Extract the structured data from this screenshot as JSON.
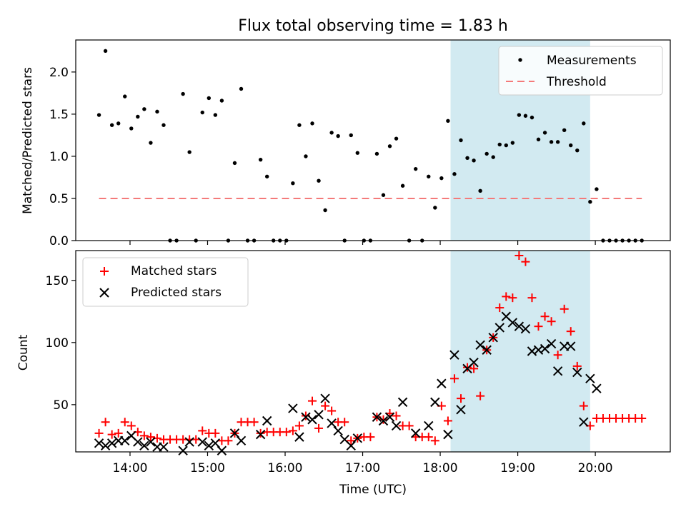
{
  "title": "Flux total observing time = 1.83 h",
  "colors": {
    "measurements": "#000000",
    "threshold": "#f47a7a",
    "matched": "#ff0000",
    "predicted": "#000000",
    "highlight": "#add8e6"
  },
  "chart_data": [
    {
      "type": "scatter",
      "ylabel": "Matched/Predicted stars",
      "ylim": [
        0,
        2.38
      ],
      "yticks": [
        0.0,
        0.5,
        1.0,
        1.5,
        2.0
      ],
      "ytick_labels": [
        "0.0",
        "0.5",
        "1.0",
        "1.5",
        "2.0"
      ],
      "legend_position": "top-right",
      "highlight_span": [
        "18:08",
        "19:56"
      ],
      "threshold": {
        "name": "Threshold",
        "y": 0.5,
        "x_range": [
          "13:36",
          "20:36"
        ],
        "style": "dashed"
      },
      "series": [
        {
          "name": "Measurements",
          "x": [
            "13:36",
            "13:41",
            "13:46",
            "13:51",
            "13:56",
            "14:01",
            "14:06",
            "14:11",
            "14:16",
            "14:21",
            "14:26",
            "14:31",
            "14:36",
            "14:41",
            "14:46",
            "14:51",
            "14:56",
            "15:01",
            "15:06",
            "15:11",
            "15:16",
            "15:21",
            "15:26",
            "15:31",
            "15:36",
            "15:41",
            "15:46",
            "15:51",
            "15:56",
            "16:01",
            "16:06",
            "16:11",
            "16:16",
            "16:21",
            "16:26",
            "16:31",
            "16:36",
            "16:41",
            "16:46",
            "16:51",
            "16:56",
            "17:01",
            "17:06",
            "17:11",
            "17:16",
            "17:21",
            "17:26",
            "17:31",
            "17:36",
            "17:41",
            "17:46",
            "17:51",
            "17:56",
            "18:01",
            "18:06",
            "18:11",
            "18:16",
            "18:21",
            "18:26",
            "18:31",
            "18:36",
            "18:41",
            "18:46",
            "18:51",
            "18:56",
            "19:01",
            "19:06",
            "19:11",
            "19:16",
            "19:21",
            "19:26",
            "19:31",
            "19:36",
            "19:41",
            "19:46",
            "19:51",
            "19:56",
            "20:01",
            "20:06",
            "20:11",
            "20:16",
            "20:21",
            "20:26",
            "20:31",
            "20:36"
          ],
          "y": [
            1.49,
            2.25,
            1.37,
            1.39,
            1.71,
            1.33,
            1.47,
            1.56,
            1.16,
            1.53,
            1.37,
            0,
            0,
            1.74,
            1.05,
            0,
            1.52,
            1.69,
            1.49,
            1.66,
            0,
            0.92,
            1.8,
            0,
            0,
            0.96,
            0.76,
            0,
            0,
            0,
            0.68,
            1.37,
            1.0,
            1.39,
            0.71,
            0.36,
            1.28,
            1.24,
            0,
            1.25,
            1.04,
            0,
            0,
            1.03,
            0.54,
            1.12,
            1.21,
            0.65,
            0,
            0.85,
            0,
            0.76,
            0.39,
            0.74,
            1.42,
            0.79,
            1.19,
            0.98,
            0.95,
            0.59,
            1.03,
            0.99,
            1.14,
            1.13,
            1.16,
            1.49,
            1.48,
            1.46,
            1.2,
            1.28,
            1.17,
            1.17,
            1.31,
            1.13,
            1.07,
            1.39,
            0.46,
            0.61,
            0,
            0,
            0,
            0,
            0,
            0,
            0
          ]
        }
      ]
    },
    {
      "type": "scatter",
      "xlabel": "Time (UTC)",
      "ylabel": "Count",
      "ylim": [
        12,
        174
      ],
      "yticks": [
        50,
        100,
        150
      ],
      "ytick_labels": [
        "50",
        "100",
        "150"
      ],
      "xticks": [
        "14:00",
        "15:00",
        "16:00",
        "17:00",
        "18:00",
        "19:00",
        "20:00"
      ],
      "xtick_labels": [
        "14:00",
        "15:00",
        "16:00",
        "17:00",
        "18:00",
        "19:00",
        "20:00"
      ],
      "xlim": [
        "13:18",
        "20:58"
      ],
      "legend_position": "top-left",
      "highlight_span": [
        "18:08",
        "19:56"
      ],
      "series": [
        {
          "name": "Matched stars",
          "marker": "plus",
          "x": [
            "13:36",
            "13:41",
            "13:46",
            "13:51",
            "13:56",
            "14:01",
            "14:06",
            "14:11",
            "14:16",
            "14:21",
            "14:26",
            "14:31",
            "14:36",
            "14:41",
            "14:46",
            "14:51",
            "14:56",
            "15:01",
            "15:06",
            "15:11",
            "15:16",
            "15:21",
            "15:26",
            "15:31",
            "15:36",
            "15:41",
            "15:46",
            "15:51",
            "15:56",
            "16:01",
            "16:06",
            "16:11",
            "16:16",
            "16:21",
            "16:26",
            "16:31",
            "16:36",
            "16:41",
            "16:46",
            "16:51",
            "16:56",
            "17:01",
            "17:06",
            "17:11",
            "17:16",
            "17:21",
            "17:26",
            "17:31",
            "17:36",
            "17:41",
            "17:46",
            "17:51",
            "17:56",
            "18:01",
            "18:06",
            "18:11",
            "18:16",
            "18:21",
            "18:26",
            "18:31",
            "18:36",
            "18:41",
            "18:46",
            "18:51",
            "18:56",
            "19:01",
            "19:06",
            "19:11",
            "19:16",
            "19:21",
            "19:26",
            "19:31",
            "19:36",
            "19:41",
            "19:46",
            "19:51",
            "19:56",
            "20:01",
            "20:06",
            "20:11",
            "20:16",
            "20:21",
            "20:26",
            "20:31",
            "20:36"
          ],
          "y": [
            27,
            36,
            26,
            27,
            36,
            33,
            28,
            25,
            24,
            23,
            22,
            22,
            22,
            22,
            22,
            22,
            29,
            27,
            27,
            21,
            21,
            27,
            36,
            36,
            36,
            27,
            28,
            28,
            28,
            28,
            29,
            33,
            41,
            53,
            31,
            49,
            45,
            36,
            36,
            21,
            23,
            24,
            24,
            40,
            38,
            43,
            41,
            33,
            33,
            24,
            24,
            24,
            21,
            49,
            37,
            71,
            55,
            80,
            79,
            57,
            94,
            104,
            128,
            137,
            136,
            170,
            165,
            136,
            113,
            121,
            117,
            90,
            127,
            109,
            81,
            49,
            33,
            39,
            39,
            39,
            39,
            39,
            39,
            39,
            39
          ]
        },
        {
          "name": "Predicted stars",
          "marker": "x",
          "x": [
            "13:36",
            "13:41",
            "13:46",
            "13:51",
            "13:56",
            "14:01",
            "14:06",
            "14:11",
            "14:16",
            "14:21",
            "14:26",
            "14:31",
            "14:36",
            "14:41",
            "14:46",
            "14:51",
            "14:56",
            "15:01",
            "15:06",
            "15:11",
            "15:16",
            "15:21",
            "15:26",
            "15:31",
            "15:36",
            "15:41",
            "15:46",
            "15:51",
            "15:56",
            "16:01",
            "16:06",
            "16:11",
            "16:16",
            "16:21",
            "16:26",
            "16:31",
            "16:36",
            "16:41",
            "16:46",
            "16:51",
            "16:56",
            "17:01",
            "17:06",
            "17:11",
            "17:16",
            "17:21",
            "17:26",
            "17:31",
            "17:36",
            "17:41",
            "17:46",
            "17:51",
            "17:56",
            "18:01",
            "18:06",
            "18:11",
            "18:16",
            "18:21",
            "18:26",
            "18:31",
            "18:36",
            "18:41",
            "18:46",
            "18:51",
            "18:56",
            "19:01",
            "19:06",
            "19:11",
            "19:16",
            "19:21",
            "19:26",
            "19:31",
            "19:36",
            "19:41",
            "19:46",
            "19:51",
            "19:56",
            "20:01",
            "20:06",
            "20:11",
            "20:16",
            "20:21",
            "20:26",
            "20:31",
            "20:36"
          ],
          "y": [
            19,
            17,
            19,
            21,
            21,
            25,
            20,
            17,
            20,
            16,
            16,
            null,
            null,
            13,
            20,
            null,
            20,
            17,
            19,
            13,
            null,
            27,
            21,
            null,
            null,
            26,
            37,
            null,
            null,
            null,
            47,
            24,
            40,
            38,
            42,
            55,
            35,
            29,
            22,
            17,
            23,
            null,
            null,
            40,
            37,
            40,
            33,
            52,
            null,
            27,
            null,
            33,
            52,
            67,
            26,
            90,
            46,
            79,
            84,
            98,
            94,
            104,
            112,
            121,
            116,
            113,
            111,
            93,
            94,
            95,
            99,
            77,
            97,
            97,
            76,
            36,
            71,
            63,
            null,
            null,
            null,
            null,
            null,
            null,
            null
          ]
        }
      ]
    }
  ]
}
